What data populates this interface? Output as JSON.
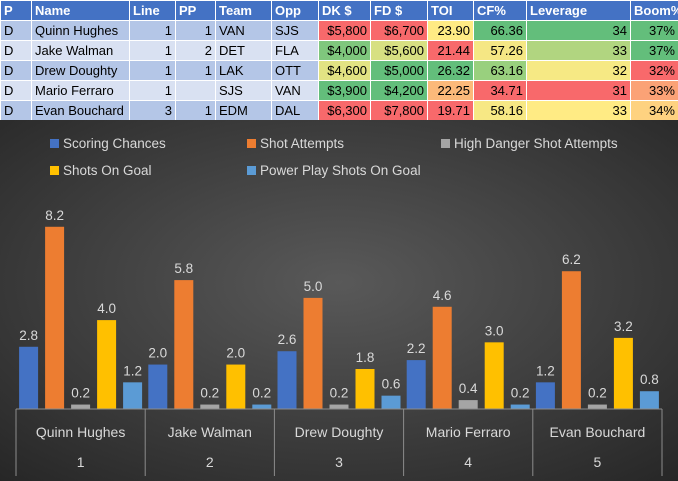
{
  "table": {
    "headers": [
      "P",
      "Name",
      "Line",
      "PP",
      "Team",
      "Opp",
      "DK $",
      "FD $",
      "TOI",
      "CF%",
      "Leverage",
      "Boom%"
    ],
    "rows": [
      {
        "pos": "D",
        "name": "Quinn Hughes",
        "line": "1",
        "pp": "1",
        "team": "VAN",
        "opp": "SJS",
        "dk": "$5,800",
        "fd": "$6,700",
        "toi": "23.90",
        "cf": "66.36",
        "leverage": "34",
        "boom": "37%",
        "colors": {
          "dk": "#f8696b",
          "fd": "#f8696b",
          "toi": "#ffeb84",
          "cf": "#63be7b",
          "leverage": "#63be7b",
          "boom": "#63be7b"
        }
      },
      {
        "pos": "D",
        "name": "Jake Walman",
        "line": "1",
        "pp": "2",
        "team": "DET",
        "opp": "FLA",
        "dk": "$4,000",
        "fd": "$5,600",
        "toi": "21.44",
        "cf": "57.26",
        "leverage": "33",
        "boom": "37%",
        "colors": {
          "dk": "#7fc77d",
          "fd": "#d7e082",
          "toi": "#f8696b",
          "cf": "#f5e784",
          "leverage": "#b1d580",
          "boom": "#63be7b"
        }
      },
      {
        "pos": "D",
        "name": "Drew Doughty",
        "line": "1",
        "pp": "1",
        "team": "LAK",
        "opp": "OTT",
        "dk": "$4,600",
        "fd": "$5,000",
        "toi": "26.32",
        "cf": "63.16",
        "leverage": "32",
        "boom": "32%",
        "colors": {
          "dk": "#e2e383",
          "fd": "#63be7b",
          "toi": "#63be7b",
          "cf": "#99d07e",
          "leverage": "#f6e984",
          "boom": "#f8696b"
        }
      },
      {
        "pos": "D",
        "name": "Mario Ferraro",
        "line": "1",
        "pp": "",
        "team": "SJS",
        "opp": "VAN",
        "dk": "$3,900",
        "fd": "$4,200",
        "toi": "22.25",
        "cf": "34.71",
        "leverage": "31",
        "boom": "33%",
        "colors": {
          "dk": "#63be7b",
          "fd": "#63be7b",
          "toi": "#fcb97a",
          "cf": "#f8696b",
          "leverage": "#f8696b",
          "boom": "#fba276"
        }
      },
      {
        "pos": "D",
        "name": "Evan Bouchard",
        "line": "3",
        "pp": "1",
        "team": "EDM",
        "opp": "DAL",
        "dk": "$6,300",
        "fd": "$7,800",
        "toi": "19.71",
        "cf": "58.16",
        "leverage": "33",
        "boom": "34%",
        "colors": {
          "dk": "#f8696b",
          "fd": "#f8696b",
          "toi": "#f8696b",
          "cf": "#f7e884",
          "leverage": "#ffeb84",
          "boom": "#fed280"
        }
      }
    ]
  },
  "chart_data": {
    "type": "bar",
    "title": "",
    "categories": [
      {
        "name": "Quinn Hughes",
        "index": "1"
      },
      {
        "name": "Jake Walman",
        "index": "2"
      },
      {
        "name": "Drew Doughty",
        "index": "3"
      },
      {
        "name": "Mario Ferraro",
        "index": "4"
      },
      {
        "name": "Evan Bouchard",
        "index": "5"
      }
    ],
    "series": [
      {
        "name": "Scoring Chances",
        "color": "#4472c4",
        "values": [
          2.8,
          2.0,
          2.6,
          2.2,
          1.2
        ]
      },
      {
        "name": "Shot Attempts",
        "color": "#ed7d31",
        "values": [
          8.2,
          5.8,
          5.0,
          4.6,
          6.2
        ]
      },
      {
        "name": "High Danger Shot Attempts",
        "color": "#a5a5a5",
        "values": [
          0.2,
          0.2,
          0.2,
          0.4,
          0.2
        ]
      },
      {
        "name": "Shots On Goal",
        "color": "#ffc000",
        "values": [
          4.0,
          2.0,
          1.8,
          3.0,
          3.2
        ]
      },
      {
        "name": "Power Play Shots On Goal",
        "color": "#5b9bd5",
        "values": [
          1.2,
          0.2,
          0.6,
          0.2,
          0.8
        ]
      }
    ],
    "legend_position": "top",
    "ylim": [
      0,
      9
    ],
    "grid": false,
    "data_labels": true,
    "xlabel": "",
    "ylabel": ""
  }
}
